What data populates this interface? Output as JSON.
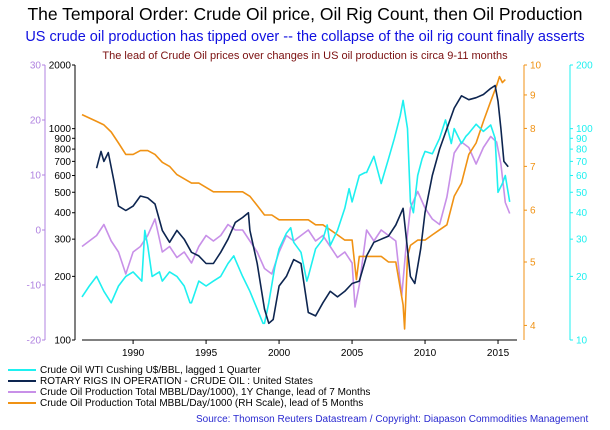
{
  "title": "The Temporal Order: Crude Oil price, Oil Rig Count, then Oil Production",
  "subtitle": "US crude oil production has tipped over -- the collapse of the oil rig count finally asserts",
  "lead_note": "The lead of Crude Oil prices over changes in US oil production is circa 9-11 months",
  "source": "Source: Thomson Reuters Datastream / Copyright: Diapason Commodities Management",
  "colors": {
    "wti": "#1ef0f0",
    "rigs": "#0d2550",
    "yoy": "#c890e8",
    "prod": "#f09214",
    "axis_yoy": "#b083e0",
    "axis_prod": "#f09214",
    "axis_wti": "#1ef0f0",
    "axis_rigs": "#000000",
    "source_text": "#2a2ad0"
  },
  "chart_data": {
    "type": "line",
    "x_ticks": [
      "1990",
      "1995",
      "2000",
      "2005",
      "2010",
      "2015"
    ],
    "x_range": [
      1986.5,
      2016.3
    ],
    "axes": {
      "yoy_percent": {
        "side": "left-outer",
        "scale": "linear",
        "range": [
          -20,
          30
        ],
        "ticks": [
          "-20",
          "-10",
          "0",
          "10",
          "20",
          "30"
        ]
      },
      "rig_count": {
        "side": "left-inner",
        "scale": "log",
        "range": [
          100,
          2000
        ],
        "ticks": [
          "100",
          "200",
          "300",
          "400",
          "500",
          "600",
          "700",
          "800",
          "900",
          "1000",
          "2000"
        ]
      },
      "production_mbbl_day": {
        "side": "right-inner",
        "scale": "log",
        "range": [
          3.8,
          10
        ],
        "ticks": [
          "4",
          "5",
          "6",
          "7",
          "8",
          "9",
          "10"
        ]
      },
      "wti_usd": {
        "side": "right-outer",
        "scale": "log",
        "range": [
          10,
          200
        ],
        "ticks": [
          "10",
          "20",
          "30",
          "40",
          "50",
          "60",
          "70",
          "80",
          "90",
          "100",
          "200"
        ]
      }
    },
    "series": [
      {
        "name": "Crude Oil WTI Cushing U$/BBL, lagged 1 Quarter",
        "axis": "wti_usd",
        "color_key": "wti",
        "points": [
          [
            1986.5,
            16
          ],
          [
            1987,
            18
          ],
          [
            1987.5,
            20
          ],
          [
            1988,
            17
          ],
          [
            1988.5,
            15
          ],
          [
            1989,
            18
          ],
          [
            1989.5,
            20
          ],
          [
            1990,
            21
          ],
          [
            1990.6,
            19
          ],
          [
            1990.8,
            33
          ],
          [
            1991,
            28
          ],
          [
            1991.3,
            20
          ],
          [
            1991.8,
            21
          ],
          [
            1992,
            19
          ],
          [
            1992.5,
            21
          ],
          [
            1993,
            20
          ],
          [
            1993.5,
            18
          ],
          [
            1993.9,
            15
          ],
          [
            1994,
            15
          ],
          [
            1994.5,
            19
          ],
          [
            1995,
            18
          ],
          [
            1995.5,
            19
          ],
          [
            1996,
            20
          ],
          [
            1996.5,
            23
          ],
          [
            1996.9,
            25
          ],
          [
            1997,
            24
          ],
          [
            1997.5,
            20
          ],
          [
            1998,
            17
          ],
          [
            1998.5,
            14
          ],
          [
            1998.9,
            12
          ],
          [
            1999,
            12
          ],
          [
            1999.3,
            15
          ],
          [
            1999.7,
            22
          ],
          [
            2000,
            27
          ],
          [
            2000.5,
            32
          ],
          [
            2000.8,
            34
          ],
          [
            2001,
            29
          ],
          [
            2001.5,
            26
          ],
          [
            2001.9,
            19
          ],
          [
            2002,
            20
          ],
          [
            2002.5,
            27
          ],
          [
            2003,
            30
          ],
          [
            2003.3,
            35
          ],
          [
            2003.5,
            28
          ],
          [
            2004,
            33
          ],
          [
            2004.5,
            42
          ],
          [
            2004.8,
            52
          ],
          [
            2005,
            45
          ],
          [
            2005.5,
            60
          ],
          [
            2005.9,
            62
          ],
          [
            2006,
            62
          ],
          [
            2006.5,
            74
          ],
          [
            2006.9,
            58
          ],
          [
            2007,
            55
          ],
          [
            2007.5,
            72
          ],
          [
            2007.9,
            90
          ],
          [
            2008.3,
            115
          ],
          [
            2008.5,
            136
          ],
          [
            2008.8,
            100
          ],
          [
            2009,
            45
          ],
          [
            2009.2,
            40
          ],
          [
            2009.5,
            60
          ],
          [
            2009.8,
            72
          ],
          [
            2010,
            78
          ],
          [
            2010.5,
            76
          ],
          [
            2011,
            90
          ],
          [
            2011.4,
            110
          ],
          [
            2011.8,
            85
          ],
          [
            2012,
            100
          ],
          [
            2012.5,
            85
          ],
          [
            2012.8,
            92
          ],
          [
            2013,
            95
          ],
          [
            2013.5,
            105
          ],
          [
            2013.8,
            100
          ],
          [
            2014,
            97
          ],
          [
            2014.5,
            104
          ],
          [
            2014.8,
            90
          ],
          [
            2015,
            50
          ],
          [
            2015.3,
            55
          ],
          [
            2015.5,
            60
          ],
          [
            2015.8,
            45
          ]
        ]
      },
      {
        "name": "ROTARY RIGS IN OPERATION - CRUDE OIL : United States",
        "axis": "rig_count",
        "color_key": "rigs",
        "points": [
          [
            1987.5,
            650
          ],
          [
            1987.8,
            780
          ],
          [
            1988,
            700
          ],
          [
            1988.3,
            770
          ],
          [
            1988.7,
            560
          ],
          [
            1989,
            430
          ],
          [
            1989.5,
            410
          ],
          [
            1990,
            430
          ],
          [
            1990.5,
            480
          ],
          [
            1991,
            470
          ],
          [
            1991.5,
            440
          ],
          [
            1992,
            330
          ],
          [
            1992.5,
            290
          ],
          [
            1993,
            330
          ],
          [
            1993.5,
            300
          ],
          [
            1994,
            260
          ],
          [
            1994.5,
            250
          ],
          [
            1995,
            230
          ],
          [
            1995.5,
            230
          ],
          [
            1996,
            260
          ],
          [
            1996.5,
            300
          ],
          [
            1997,
            360
          ],
          [
            1997.5,
            380
          ],
          [
            1997.9,
            400
          ],
          [
            1998,
            330
          ],
          [
            1998.5,
            230
          ],
          [
            1999,
            140
          ],
          [
            1999.3,
            120
          ],
          [
            1999.6,
            125
          ],
          [
            2000,
            180
          ],
          [
            2000.5,
            200
          ],
          [
            2001,
            240
          ],
          [
            2001.5,
            230
          ],
          [
            2002,
            135
          ],
          [
            2002.5,
            130
          ],
          [
            2003,
            150
          ],
          [
            2003.5,
            170
          ],
          [
            2004,
            160
          ],
          [
            2004.5,
            170
          ],
          [
            2005,
            185
          ],
          [
            2005.5,
            190
          ],
          [
            2006,
            250
          ],
          [
            2006.5,
            290
          ],
          [
            2007,
            300
          ],
          [
            2007.5,
            310
          ],
          [
            2008,
            350
          ],
          [
            2008.5,
            420
          ],
          [
            2009,
            200
          ],
          [
            2009.3,
            185
          ],
          [
            2009.7,
            270
          ],
          [
            2010,
            400
          ],
          [
            2010.5,
            600
          ],
          [
            2011,
            800
          ],
          [
            2011.5,
            1000
          ],
          [
            2012,
            1250
          ],
          [
            2012.5,
            1430
          ],
          [
            2013,
            1370
          ],
          [
            2013.5,
            1400
          ],
          [
            2014,
            1450
          ],
          [
            2014.5,
            1550
          ],
          [
            2014.8,
            1600
          ],
          [
            2015,
            1350
          ],
          [
            2015.2,
            1000
          ],
          [
            2015.4,
            700
          ],
          [
            2015.7,
            660
          ]
        ]
      },
      {
        "name": "Crude Oil Production Total MBBL/Day/1000), 1Y Change, lead of 7 Months",
        "axis": "yoy_percent",
        "color_key": "yoy",
        "points": [
          [
            1986.5,
            -3
          ],
          [
            1987,
            -2
          ],
          [
            1987.5,
            -1
          ],
          [
            1988,
            1
          ],
          [
            1988.5,
            -2
          ],
          [
            1989,
            -4
          ],
          [
            1989.5,
            -8
          ],
          [
            1990,
            -4
          ],
          [
            1990.5,
            -3
          ],
          [
            1991,
            -1
          ],
          [
            1991.5,
            2
          ],
          [
            1992,
            -4
          ],
          [
            1992.5,
            -3
          ],
          [
            1993,
            -5
          ],
          [
            1993.5,
            -4
          ],
          [
            1994,
            -6
          ],
          [
            1994.5,
            -3
          ],
          [
            1995,
            -1
          ],
          [
            1995.5,
            -2
          ],
          [
            1996,
            -1
          ],
          [
            1996.5,
            1
          ],
          [
            1997,
            0
          ],
          [
            1997.5,
            0
          ],
          [
            1998,
            -2
          ],
          [
            1998.5,
            -4
          ],
          [
            1999,
            -7
          ],
          [
            1999.5,
            -8
          ],
          [
            2000,
            -4
          ],
          [
            2000.5,
            -1
          ],
          [
            2001,
            -2
          ],
          [
            2001.5,
            -1
          ],
          [
            2002,
            0
          ],
          [
            2002.5,
            -2
          ],
          [
            2003,
            -1
          ],
          [
            2003.5,
            -3
          ],
          [
            2004,
            -5
          ],
          [
            2004.5,
            -4
          ],
          [
            2005,
            -6
          ],
          [
            2005.2,
            -14
          ],
          [
            2005.5,
            -10
          ],
          [
            2006,
            0
          ],
          [
            2006.5,
            -2
          ],
          [
            2007,
            0
          ],
          [
            2007.5,
            -1
          ],
          [
            2008,
            -2
          ],
          [
            2008.4,
            -12
          ],
          [
            2008.7,
            -3
          ],
          [
            2009,
            4
          ],
          [
            2009.5,
            7
          ],
          [
            2010,
            4
          ],
          [
            2010.5,
            2
          ],
          [
            2011,
            1
          ],
          [
            2011.5,
            6
          ],
          [
            2012,
            14
          ],
          [
            2012.5,
            16
          ],
          [
            2013,
            15
          ],
          [
            2013.5,
            12
          ],
          [
            2014,
            15
          ],
          [
            2014.5,
            17
          ],
          [
            2014.9,
            16
          ],
          [
            2015.2,
            12
          ],
          [
            2015.5,
            5
          ],
          [
            2015.8,
            3
          ]
        ]
      },
      {
        "name": "Crude Oil Production Total MBBL/Day/1000 (RH Scale), lead of 5 Months",
        "axis": "production_mbbl_day",
        "color_key": "prod",
        "points": [
          [
            1986.5,
            8.4
          ],
          [
            1987,
            8.3
          ],
          [
            1987.5,
            8.2
          ],
          [
            1988,
            8.1
          ],
          [
            1988.5,
            7.9
          ],
          [
            1989,
            7.6
          ],
          [
            1989.5,
            7.3
          ],
          [
            1990,
            7.3
          ],
          [
            1990.5,
            7.4
          ],
          [
            1991,
            7.4
          ],
          [
            1991.5,
            7.3
          ],
          [
            1992,
            7.1
          ],
          [
            1992.5,
            7.0
          ],
          [
            1993,
            6.8
          ],
          [
            1993.5,
            6.7
          ],
          [
            1994,
            6.6
          ],
          [
            1994.5,
            6.6
          ],
          [
            1995,
            6.5
          ],
          [
            1995.5,
            6.4
          ],
          [
            1996,
            6.4
          ],
          [
            1996.5,
            6.4
          ],
          [
            1997,
            6.4
          ],
          [
            1997.5,
            6.4
          ],
          [
            1998,
            6.3
          ],
          [
            1998.5,
            6.1
          ],
          [
            1999,
            5.9
          ],
          [
            1999.5,
            5.9
          ],
          [
            2000,
            5.8
          ],
          [
            2000.5,
            5.8
          ],
          [
            2001,
            5.8
          ],
          [
            2001.5,
            5.8
          ],
          [
            2002,
            5.8
          ],
          [
            2002.5,
            5.7
          ],
          [
            2003,
            5.7
          ],
          [
            2003.5,
            5.6
          ],
          [
            2004,
            5.5
          ],
          [
            2004.5,
            5.4
          ],
          [
            2005,
            5.4
          ],
          [
            2005.3,
            4.7
          ],
          [
            2005.5,
            5.1
          ],
          [
            2006,
            5.1
          ],
          [
            2006.5,
            5.1
          ],
          [
            2007,
            5.1
          ],
          [
            2007.5,
            5.0
          ],
          [
            2008,
            5.0
          ],
          [
            2008.5,
            4.3
          ],
          [
            2008.6,
            3.95
          ],
          [
            2008.8,
            5.1
          ],
          [
            2009,
            5.3
          ],
          [
            2009.5,
            5.4
          ],
          [
            2010,
            5.4
          ],
          [
            2010.5,
            5.5
          ],
          [
            2011,
            5.6
          ],
          [
            2011.5,
            5.7
          ],
          [
            2012,
            6.3
          ],
          [
            2012.5,
            6.6
          ],
          [
            2013,
            7.3
          ],
          [
            2013.5,
            7.6
          ],
          [
            2014,
            8.2
          ],
          [
            2014.5,
            8.8
          ],
          [
            2014.9,
            9.3
          ],
          [
            2015.1,
            9.6
          ],
          [
            2015.3,
            9.4
          ],
          [
            2015.5,
            9.5
          ]
        ]
      }
    ],
    "legend_placement": "bottom-left",
    "grid": false
  }
}
